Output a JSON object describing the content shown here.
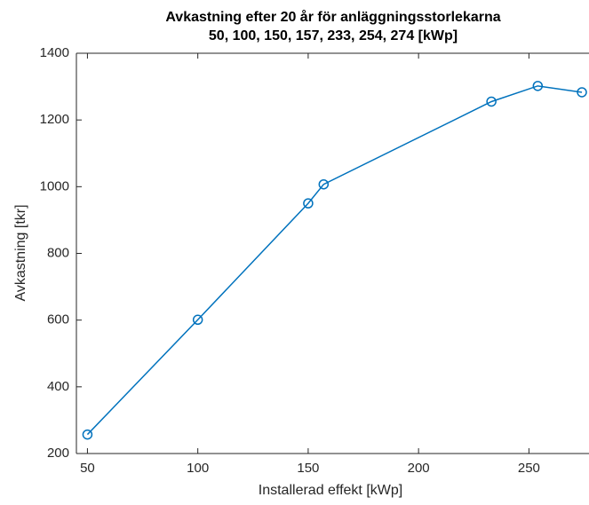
{
  "chart_data": {
    "type": "line",
    "title": [
      "Avkastning efter 20 år för anläggningsstorlekarna",
      "50, 100, 150, 157, 233, 254, 274 [kWp]"
    ],
    "x_label": "Installerad effekt [kWp]",
    "y_label": "Avkastning [tkr]",
    "x": [
      50,
      100,
      150,
      157,
      233,
      254,
      274
    ],
    "series": [
      {
        "name": "Avkastning",
        "color": "#0072bd",
        "values": [
          257,
          601,
          950,
          1007,
          1255,
          1302,
          1283
        ]
      }
    ],
    "xlim": [
      45,
      275
    ],
    "xticks": [
      50,
      100,
      150,
      200,
      250
    ],
    "ylim": [
      200,
      1400
    ],
    "yticks": [
      200,
      400,
      600,
      800,
      1000,
      1200,
      1400
    ],
    "markers": "circle",
    "grid": false
  }
}
